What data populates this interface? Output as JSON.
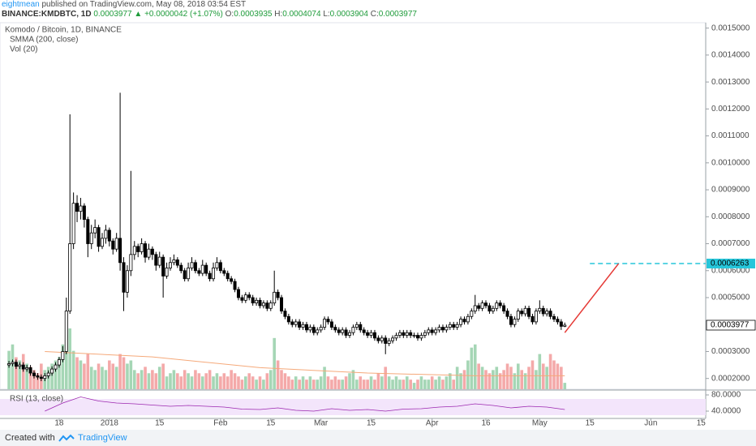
{
  "header": {
    "author": "eightmean",
    "published": "published on TradingView.com, May 08, 2018 03:54 EST",
    "symbol": "BINANCE:KMDBTC, 1D",
    "change": "+0.0000042 (+1.07%)",
    "ohlc_labels": [
      "O:",
      "H:",
      "L:",
      "C:"
    ]
  },
  "footer": {
    "created": "Created with",
    "brand": "TradingView"
  },
  "chart_data": {
    "type": "candlestick",
    "title": "Komodo / Bitcoin, 1D, BINANCE",
    "xlim": [
      -2.5,
      194.3
    ],
    "xticks": [
      {
        "value": 14,
        "label": "18"
      },
      {
        "value": 28,
        "label": "2018"
      },
      {
        "value": 42,
        "label": "15"
      },
      {
        "value": 59,
        "label": "Feb"
      },
      {
        "value": 73,
        "label": "15"
      },
      {
        "value": 87,
        "label": "Mar"
      },
      {
        "value": 101,
        "label": "15"
      },
      {
        "value": 118,
        "label": "Apr"
      },
      {
        "value": 133,
        "label": "16"
      },
      {
        "value": 148,
        "label": "May"
      },
      {
        "value": 162,
        "label": "15"
      },
      {
        "value": 179,
        "label": "Jun"
      },
      {
        "value": 193,
        "label": "15"
      }
    ],
    "ylim": [
      0.00016,
      0.00152
    ],
    "yticks": [
      {
        "value": 0.0015,
        "label": "0.0015000"
      },
      {
        "value": 0.0014,
        "label": "0.0014000"
      },
      {
        "value": 0.0013,
        "label": "0.0013000"
      },
      {
        "value": 0.0012,
        "label": "0.0012000"
      },
      {
        "value": 0.0011,
        "label": "0.0011000"
      },
      {
        "value": 0.001,
        "label": "0.0010000"
      },
      {
        "value": 0.0009,
        "label": "0.0009000"
      },
      {
        "value": 0.0008,
        "label": "0.0008000"
      },
      {
        "value": 0.0007,
        "label": "0.0007000"
      },
      {
        "value": 0.0006,
        "label": "0.0006000"
      },
      {
        "value": 0.0005,
        "label": "0.0005000"
      },
      {
        "value": 0.0003,
        "label": "0.0003000"
      },
      {
        "value": 0.0002,
        "label": "0.0002000"
      }
    ],
    "up_color": "#ffffff",
    "down_color": "#000000",
    "open": [
      0.00025,
      0.000255,
      0.00026,
      0.000245,
      0.00025,
      0.000235,
      0.00024,
      0.00022,
      0.00021,
      0.000205,
      0.0002,
      0.00021,
      0.00022,
      0.000235,
      0.00025,
      0.00027,
      0.0003,
      0.00045,
      0.0007,
      0.00085,
      0.00082,
      0.00084,
      0.00079,
      0.0007,
      0.00074,
      0.00076,
      0.00069,
      0.00072,
      0.00075,
      0.00071,
      0.00068,
      0.00072,
      0.00063,
      0.00052,
      0.0006,
      0.00066,
      0.00069,
      0.00067,
      0.0007,
      0.00065,
      0.00068,
      0.00066,
      0.00062,
      0.00065,
      0.00058,
      0.00061,
      0.00063,
      0.00064,
      0.00062,
      0.0006,
      0.00057,
      0.00061,
      0.00063,
      0.0006,
      0.00059,
      0.00062,
      0.00059,
      0.00057,
      0.00061,
      0.00063,
      0.0006,
      0.00059,
      0.00057,
      0.00056,
      0.00053,
      0.0005,
      0.00049,
      0.00051,
      0.0005,
      0.00048,
      0.00049,
      0.00047,
      0.00048,
      0.00046,
      0.00048,
      0.00052,
      0.0005,
      0.00045,
      0.00043,
      0.00041,
      0.0004,
      0.00041,
      0.00039,
      0.0004,
      0.00038,
      0.00039,
      0.00037,
      0.00038,
      0.00039,
      0.00042,
      0.00041,
      0.00039,
      0.00038,
      0.00037,
      0.00038,
      0.00036,
      0.00037,
      0.00039,
      0.0004,
      0.00038,
      0.00037,
      0.00036,
      0.00037,
      0.00035,
      0.00034,
      0.00035,
      0.00033,
      0.00034,
      0.00035,
      0.00036,
      0.00037,
      0.00036,
      0.00037,
      0.00036,
      0.00036,
      0.00035,
      0.00036,
      0.00037,
      0.00038,
      0.00037,
      0.00038,
      0.00039,
      0.00038,
      0.00039,
      0.0004,
      0.00039,
      0.0004,
      0.00042,
      0.00041,
      0.00043,
      0.00045,
      0.00047,
      0.00046,
      0.00048,
      0.00047,
      0.00045,
      0.00046,
      0.00048,
      0.00047,
      0.00045,
      0.00043,
      0.0004,
      0.00042,
      0.00045,
      0.00044,
      0.00046,
      0.00043,
      0.00041,
      0.00045,
      0.00046,
      0.00044,
      0.00045,
      0.00043,
      0.00042,
      0.00041,
      0.0003935
    ],
    "high": [
      0.000265,
      0.00027,
      0.00027,
      0.00026,
      0.00026,
      0.00025,
      0.00025,
      0.00023,
      0.00022,
      0.000215,
      0.00022,
      0.00023,
      0.000245,
      0.00026,
      0.00028,
      0.00032,
      0.0005,
      0.00118,
      0.00089,
      0.00088,
      0.00087,
      0.00085,
      0.0008,
      0.00077,
      0.00079,
      0.00077,
      0.00074,
      0.00077,
      0.00076,
      0.00072,
      0.00074,
      0.00126,
      0.00065,
      0.00062,
      0.00097,
      0.00071,
      0.0007,
      0.00072,
      0.00071,
      0.0007,
      0.00069,
      0.00067,
      0.00067,
      0.00066,
      0.00063,
      0.00065,
      0.00066,
      0.00065,
      0.00063,
      0.00061,
      0.00063,
      0.00065,
      0.00064,
      0.00061,
      0.00064,
      0.00063,
      0.0006,
      0.00063,
      0.00065,
      0.00064,
      0.00061,
      0.0006,
      0.00058,
      0.00057,
      0.00054,
      0.00051,
      0.00052,
      0.00052,
      0.00051,
      0.0005,
      0.0005,
      0.00049,
      0.00049,
      0.00049,
      0.0006,
      0.00053,
      0.00051,
      0.00046,
      0.00044,
      0.00042,
      0.00042,
      0.00042,
      0.00041,
      0.00041,
      0.0004,
      0.0004,
      0.00039,
      0.0004,
      0.00043,
      0.00043,
      0.00042,
      0.0004,
      0.00039,
      0.00039,
      0.00039,
      0.00038,
      0.0004,
      0.00041,
      0.00041,
      0.00039,
      0.00038,
      0.00038,
      0.00038,
      0.00036,
      0.00036,
      0.00036,
      0.00035,
      0.00036,
      0.00037,
      0.00038,
      0.00038,
      0.00038,
      0.00038,
      0.00037,
      0.00037,
      0.00037,
      0.00038,
      0.00039,
      0.00039,
      0.00039,
      0.0004,
      0.0004,
      0.0004,
      0.00041,
      0.00041,
      0.00041,
      0.00043,
      0.00043,
      0.00044,
      0.00046,
      0.00051,
      0.00048,
      0.00049,
      0.00049,
      0.00048,
      0.00047,
      0.00049,
      0.00049,
      0.00048,
      0.00046,
      0.00044,
      0.00043,
      0.00046,
      0.00046,
      0.00047,
      0.00047,
      0.00044,
      0.00046,
      0.00049,
      0.00047,
      0.00046,
      0.00046,
      0.00044,
      0.00043,
      0.00042,
      0.0004074
    ],
    "low": [
      0.00024,
      0.000245,
      0.000235,
      0.000235,
      0.000225,
      0.000225,
      0.00021,
      0.0002,
      0.000195,
      0.00019,
      0.00019,
      0.0002,
      0.00021,
      0.000225,
      0.00024,
      0.00026,
      0.00029,
      0.00044,
      0.00068,
      0.00078,
      0.00079,
      0.00076,
      0.00065,
      0.00068,
      0.00072,
      0.00067,
      0.00068,
      0.0007,
      0.00069,
      0.00066,
      0.00067,
      0.0006,
      0.00045,
      0.0005,
      0.00058,
      0.00064,
      0.00065,
      0.00066,
      0.00063,
      0.00064,
      0.00064,
      0.0006,
      0.00061,
      0.0005,
      0.00057,
      0.0006,
      0.00062,
      0.00061,
      0.00059,
      0.00056,
      0.00056,
      0.0006,
      0.00059,
      0.00058,
      0.00058,
      0.00058,
      0.00056,
      0.00056,
      0.0006,
      0.00059,
      0.00058,
      0.00056,
      0.00055,
      0.00052,
      0.00049,
      0.00048,
      0.00048,
      0.00049,
      0.00047,
      0.00047,
      0.00046,
      0.00046,
      0.00045,
      0.00045,
      0.00047,
      0.00049,
      0.00044,
      0.00042,
      0.0004,
      0.00039,
      0.00039,
      0.00038,
      0.00038,
      0.00037,
      0.00037,
      0.00036,
      0.00036,
      0.00037,
      0.00038,
      0.0004,
      0.00038,
      0.00037,
      0.00036,
      0.00036,
      0.00035,
      0.00035,
      0.00036,
      0.00038,
      0.00037,
      0.00036,
      0.00035,
      0.00035,
      0.00034,
      0.00033,
      0.00033,
      0.00029,
      0.00032,
      0.00033,
      0.00034,
      0.00035,
      0.00035,
      0.00035,
      0.00035,
      0.00035,
      0.00034,
      0.00034,
      0.00035,
      0.00036,
      0.00036,
      0.00036,
      0.00037,
      0.00037,
      0.00037,
      0.00038,
      0.00038,
      0.00038,
      0.00039,
      0.0004,
      0.0004,
      0.00042,
      0.00044,
      0.00045,
      0.00045,
      0.00046,
      0.00044,
      0.00044,
      0.00045,
      0.00046,
      0.00044,
      0.00042,
      0.00039,
      0.00039,
      0.00041,
      0.00043,
      0.00043,
      0.00042,
      0.0004,
      0.0004,
      0.00044,
      0.00043,
      0.00043,
      0.00042,
      0.00041,
      0.0004,
      0.00038,
      0.0003904
    ],
    "close": [
      0.000255,
      0.00026,
      0.000245,
      0.00025,
      0.000235,
      0.00024,
      0.00022,
      0.00021,
      0.000205,
      0.0002,
      0.00021,
      0.00022,
      0.000235,
      0.00025,
      0.00027,
      0.0003,
      0.00045,
      0.0007,
      0.00085,
      0.00082,
      0.00084,
      0.00079,
      0.0007,
      0.00074,
      0.00076,
      0.00069,
      0.00072,
      0.00075,
      0.00071,
      0.00068,
      0.00072,
      0.00063,
      0.00052,
      0.0006,
      0.00066,
      0.00069,
      0.00067,
      0.0007,
      0.00065,
      0.00068,
      0.00066,
      0.00062,
      0.00065,
      0.00058,
      0.00061,
      0.00063,
      0.00064,
      0.00062,
      0.0006,
      0.00057,
      0.00061,
      0.00063,
      0.0006,
      0.00059,
      0.00062,
      0.00059,
      0.00057,
      0.00061,
      0.00063,
      0.0006,
      0.00059,
      0.00057,
      0.00056,
      0.00053,
      0.0005,
      0.00049,
      0.00051,
      0.0005,
      0.00048,
      0.00049,
      0.00047,
      0.00048,
      0.00046,
      0.00048,
      0.00052,
      0.0005,
      0.00045,
      0.00043,
      0.00041,
      0.0004,
      0.00041,
      0.00039,
      0.0004,
      0.00038,
      0.00039,
      0.00037,
      0.00038,
      0.00039,
      0.00042,
      0.00041,
      0.00039,
      0.00038,
      0.00037,
      0.00038,
      0.00036,
      0.00037,
      0.00039,
      0.0004,
      0.00038,
      0.00037,
      0.00036,
      0.00037,
      0.00035,
      0.00034,
      0.00035,
      0.00033,
      0.00034,
      0.00035,
      0.00036,
      0.00037,
      0.00036,
      0.00037,
      0.00036,
      0.00036,
      0.00035,
      0.00036,
      0.00037,
      0.00038,
      0.00037,
      0.00038,
      0.00039,
      0.00038,
      0.00039,
      0.0004,
      0.00039,
      0.0004,
      0.00042,
      0.00041,
      0.00043,
      0.00045,
      0.00047,
      0.00046,
      0.00048,
      0.00047,
      0.00045,
      0.00046,
      0.00048,
      0.00047,
      0.00045,
      0.00043,
      0.0004,
      0.00042,
      0.00045,
      0.00044,
      0.00046,
      0.00043,
      0.00041,
      0.00045,
      0.00046,
      0.00044,
      0.00045,
      0.00043,
      0.00042,
      0.00041,
      0.0003935,
      0.0003977
    ],
    "volume": {
      "name": "Vol (20)",
      "up_color": "#a5d6b5",
      "down_color": "#f4a9a9",
      "values": [
        60,
        70,
        50,
        45,
        55,
        40,
        35,
        30,
        25,
        40,
        30,
        35,
        40,
        45,
        50,
        70,
        85,
        95,
        60,
        50,
        45,
        40,
        55,
        35,
        30,
        40,
        35,
        30,
        45,
        40,
        35,
        55,
        50,
        40,
        45,
        30,
        25,
        30,
        35,
        25,
        30,
        25,
        35,
        40,
        20,
        25,
        30,
        25,
        20,
        30,
        25,
        20,
        30,
        25,
        20,
        25,
        30,
        20,
        25,
        20,
        25,
        20,
        30,
        25,
        20,
        15,
        20,
        25,
        20,
        15,
        20,
        15,
        25,
        30,
        80,
        45,
        30,
        25,
        20,
        15,
        20,
        15,
        20,
        15,
        20,
        15,
        15,
        20,
        35,
        20,
        15,
        20,
        15,
        15,
        20,
        25,
        30,
        15,
        20,
        15,
        15,
        20,
        15,
        25,
        20,
        35,
        20,
        15,
        20,
        15,
        15,
        20,
        15,
        10,
        15,
        20,
        15,
        15,
        20,
        15,
        20,
        15,
        20,
        25,
        15,
        35,
        25,
        30,
        45,
        65,
        70,
        40,
        35,
        30,
        25,
        30,
        35,
        25,
        30,
        40,
        35,
        25,
        40,
        30,
        25,
        35,
        45,
        30,
        55,
        40,
        35,
        55,
        45,
        40,
        35,
        10
      ]
    },
    "smma": {
      "name": "SMMA (200, close)",
      "color": "#f5a97a",
      "x": [
        10,
        40,
        70,
        100,
        130,
        155
      ],
      "values": [
        0.0003,
        0.00028,
        0.00024,
        0.00022,
        0.00021,
        0.00021
      ]
    },
    "rsi": {
      "name": "RSI (13, close)",
      "color": "#9c27b0",
      "band_color": "#f3e5fb",
      "band": [
        30,
        70
      ],
      "ylim": [
        22,
        90
      ],
      "yticks": [
        {
          "value": 80,
          "label": "80.0000"
        },
        {
          "value": 40,
          "label": "40.0000"
        }
      ],
      "x": [
        10,
        15,
        20,
        25,
        30,
        35,
        40,
        45,
        50,
        55,
        60,
        65,
        70,
        75,
        80,
        85,
        90,
        95,
        100,
        105,
        110,
        115,
        120,
        125,
        130,
        135,
        140,
        145,
        150,
        155
      ],
      "values": [
        40,
        60,
        75,
        65,
        60,
        58,
        55,
        52,
        54,
        52,
        50,
        45,
        44,
        48,
        42,
        40,
        46,
        42,
        44,
        40,
        45,
        46,
        50,
        52,
        58,
        54,
        48,
        52,
        50,
        44
      ]
    },
    "target": {
      "value": 0.0006263,
      "from": 162,
      "color": "#26c6da"
    },
    "drawing": {
      "x": [
        155,
        170
      ],
      "y": [
        0.00037,
        0.0006263
      ],
      "color": "#e53935"
    }
  }
}
